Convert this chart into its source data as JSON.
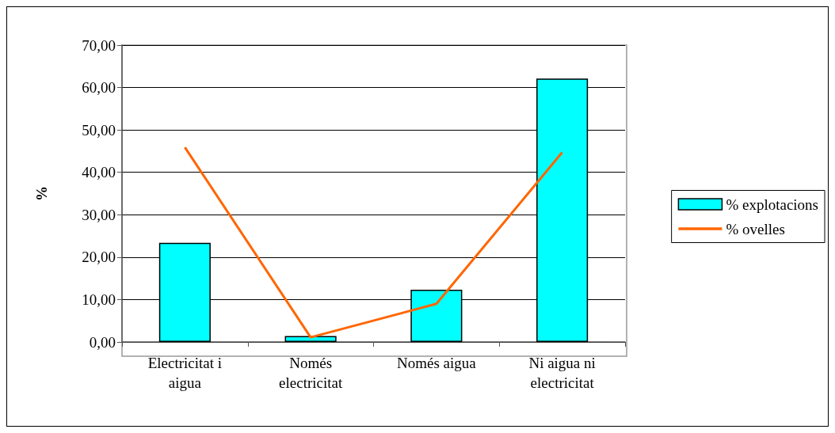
{
  "chart_data": {
    "type": "bar",
    "ylabel": "%",
    "categories": [
      "Electricitat i\naigua",
      "Només\nelectricitat",
      "Només aigua",
      "Ni aigua ni\nelectricitat"
    ],
    "series": [
      {
        "name": "% explotacions",
        "color": "#00ffff",
        "values": [
          23.4,
          1.4,
          12.3,
          62.1
        ]
      },
      {
        "name": "% ovelles",
        "type": "line",
        "color": "#ff6600",
        "values": [
          45.9,
          1.1,
          9.0,
          44.7
        ]
      }
    ],
    "ylim": [
      0,
      70
    ],
    "yticks": [
      {
        "value": 0,
        "label": "0,00"
      },
      {
        "value": 10,
        "label": "10,00"
      },
      {
        "value": 20,
        "label": "20,00"
      },
      {
        "value": 30,
        "label": "30,00"
      },
      {
        "value": 40,
        "label": "40,00"
      },
      {
        "value": 50,
        "label": "50,00"
      },
      {
        "value": 60,
        "label": "60,00"
      },
      {
        "value": 70,
        "label": "70,00"
      }
    ],
    "grid": "y",
    "legend": "right",
    "marker": "none",
    "line_style": "solid"
  }
}
